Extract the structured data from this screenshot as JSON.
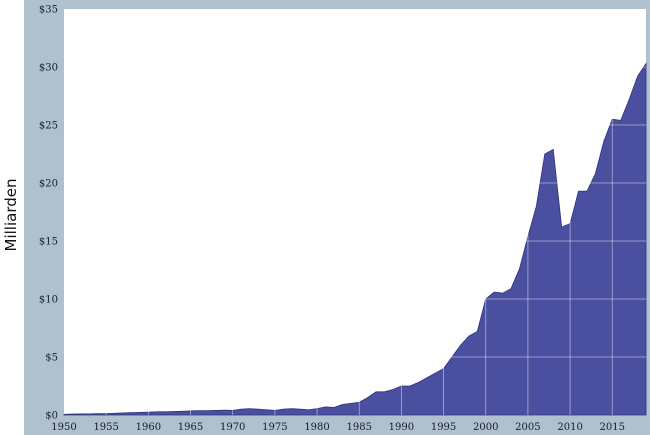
{
  "chart_data": {
    "type": "area",
    "title": "",
    "xlabel": "",
    "ylabel": "Milliarden",
    "xlim": [
      1950,
      2019
    ],
    "ylim": [
      0,
      35
    ],
    "grid": true,
    "legend": "none",
    "colors": {
      "frame": "#aec1cc",
      "plot_bg": "#ffffff",
      "area_fill": "#4a4fa0",
      "area_stroke": "#2f3380",
      "gridline": "#ffffff"
    },
    "y_ticks": [
      {
        "value": 0,
        "label": "$0"
      },
      {
        "value": 5,
        "label": "$5"
      },
      {
        "value": 10,
        "label": "$10"
      },
      {
        "value": 15,
        "label": "$15"
      },
      {
        "value": 20,
        "label": "$20"
      },
      {
        "value": 25,
        "label": "$25"
      },
      {
        "value": 30,
        "label": "$30"
      },
      {
        "value": 35,
        "label": "$35"
      }
    ],
    "x_ticks": [
      {
        "value": 1950,
        "label": "1950"
      },
      {
        "value": 1955,
        "label": "1955"
      },
      {
        "value": 1960,
        "label": "1960"
      },
      {
        "value": 1965,
        "label": "1965"
      },
      {
        "value": 1970,
        "label": "1970"
      },
      {
        "value": 1975,
        "label": "1975"
      },
      {
        "value": 1980,
        "label": "1980"
      },
      {
        "value": 1985,
        "label": "1985"
      },
      {
        "value": 1990,
        "label": "1990"
      },
      {
        "value": 1995,
        "label": "1995"
      },
      {
        "value": 2000,
        "label": "2000"
      },
      {
        "value": 2005,
        "label": "2005"
      },
      {
        "value": 2010,
        "label": "2010"
      },
      {
        "value": 2015,
        "label": "2015"
      }
    ],
    "series": [
      {
        "x": [
          1950,
          1951,
          1952,
          1953,
          1954,
          1955,
          1956,
          1957,
          1958,
          1959,
          1960,
          1961,
          1962,
          1963,
          1964,
          1965,
          1966,
          1967,
          1968,
          1969,
          1970,
          1971,
          1972,
          1973,
          1974,
          1975,
          1976,
          1977,
          1978,
          1979,
          1980,
          1981,
          1982,
          1983,
          1984,
          1985,
          1986,
          1987,
          1988,
          1989,
          1990,
          1991,
          1992,
          1993,
          1994,
          1995,
          1996,
          1997,
          1998,
          1999,
          2000,
          2001,
          2002,
          2003,
          2004,
          2005,
          2006,
          2007,
          2008,
          2009,
          2010,
          2011,
          2012,
          2013,
          2014,
          2015,
          2016,
          2017,
          2018,
          2019
        ],
        "values": [
          0.05,
          0.08,
          0.1,
          0.1,
          0.12,
          0.12,
          0.15,
          0.18,
          0.2,
          0.22,
          0.25,
          0.28,
          0.28,
          0.3,
          0.32,
          0.35,
          0.38,
          0.38,
          0.4,
          0.42,
          0.4,
          0.5,
          0.55,
          0.5,
          0.45,
          0.4,
          0.5,
          0.55,
          0.5,
          0.45,
          0.55,
          0.7,
          0.65,
          0.9,
          1.0,
          1.1,
          1.5,
          2.0,
          2.0,
          2.2,
          2.5,
          2.5,
          2.8,
          3.2,
          3.6,
          4.0,
          5.0,
          6.0,
          6.8,
          7.2,
          10.0,
          10.6,
          10.5,
          10.9,
          12.6,
          15.4,
          18.0,
          22.5,
          22.9,
          16.2,
          16.5,
          19.3,
          19.3,
          20.8,
          23.6,
          25.5,
          25.4,
          27.2,
          29.2,
          30.3
        ]
      }
    ]
  }
}
